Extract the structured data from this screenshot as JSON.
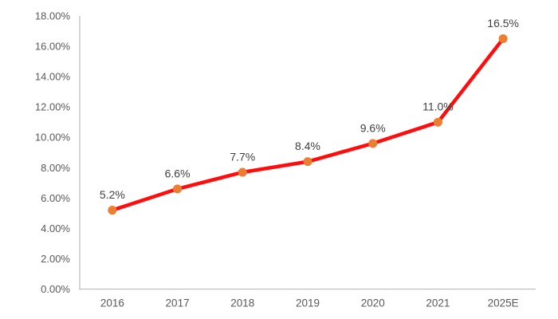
{
  "chart_data": {
    "type": "line",
    "title": "",
    "xlabel": "",
    "ylabel": "",
    "categories": [
      "2016",
      "2017",
      "2018",
      "2019",
      "2020",
      "2021",
      "2025E"
    ],
    "series": [
      {
        "name": "share-percent",
        "values": [
          5.2,
          6.6,
          7.7,
          8.4,
          9.6,
          11.0,
          16.5
        ]
      }
    ],
    "data_labels": [
      "5.2%",
      "6.6%",
      "7.7%",
      "8.4%",
      "9.6%",
      "11.0%",
      "16.5%"
    ],
    "y_ticks": [
      {
        "value": 0,
        "label": "0.00%"
      },
      {
        "value": 2,
        "label": "2.00%"
      },
      {
        "value": 4,
        "label": "4.00%"
      },
      {
        "value": 6,
        "label": "6.00%"
      },
      {
        "value": 8,
        "label": "8.00%"
      },
      {
        "value": 10,
        "label": "10.00%"
      },
      {
        "value": 12,
        "label": "12.00%"
      },
      {
        "value": 14,
        "label": "14.00%"
      },
      {
        "value": 16,
        "label": "16.00%"
      },
      {
        "value": 18,
        "label": "18.00%"
      }
    ],
    "ylim": [
      0,
      18
    ],
    "grid": false,
    "legend_position": "none",
    "colors": {
      "line": "#ff0d0d",
      "marker": "#ed7d31",
      "axis": "#bfbfbf",
      "tick_label": "#595959",
      "data_label": "#404040",
      "background": "#ffffff"
    }
  }
}
